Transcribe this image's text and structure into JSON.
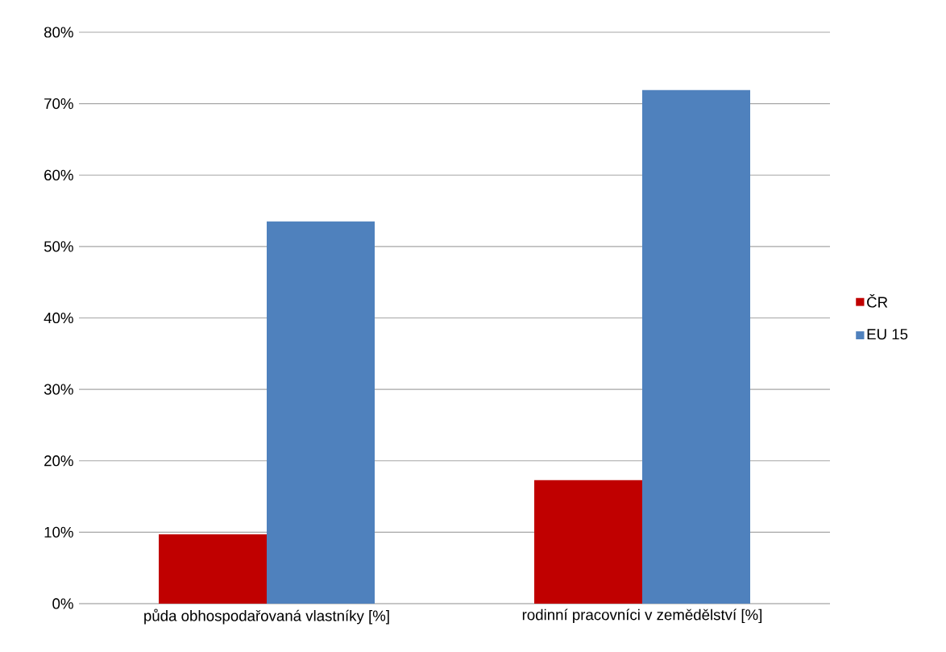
{
  "chart_data": {
    "type": "bar",
    "categories": [
      "půda obhospodařovaná vlastníky [%]",
      "rodinní pracovníci v zemědělství [%]"
    ],
    "series": [
      {
        "name": "ČR",
        "color": "#c00000",
        "values": [
          9.7,
          17.3
        ]
      },
      {
        "name": "EU 15",
        "color": "#4f81bd",
        "values": [
          53.5,
          71.9
        ]
      }
    ],
    "ylim": [
      0,
      80
    ],
    "yticks": [
      {
        "value": 0,
        "label": "0%"
      },
      {
        "value": 10,
        "label": "10%"
      },
      {
        "value": 20,
        "label": "20%"
      },
      {
        "value": 30,
        "label": "30%"
      },
      {
        "value": 40,
        "label": "40%"
      },
      {
        "value": 50,
        "label": "50%"
      },
      {
        "value": 60,
        "label": "60%"
      },
      {
        "value": 70,
        "label": "70%"
      },
      {
        "value": 80,
        "label": "80%"
      }
    ],
    "grid": "y",
    "legend": "right"
  }
}
